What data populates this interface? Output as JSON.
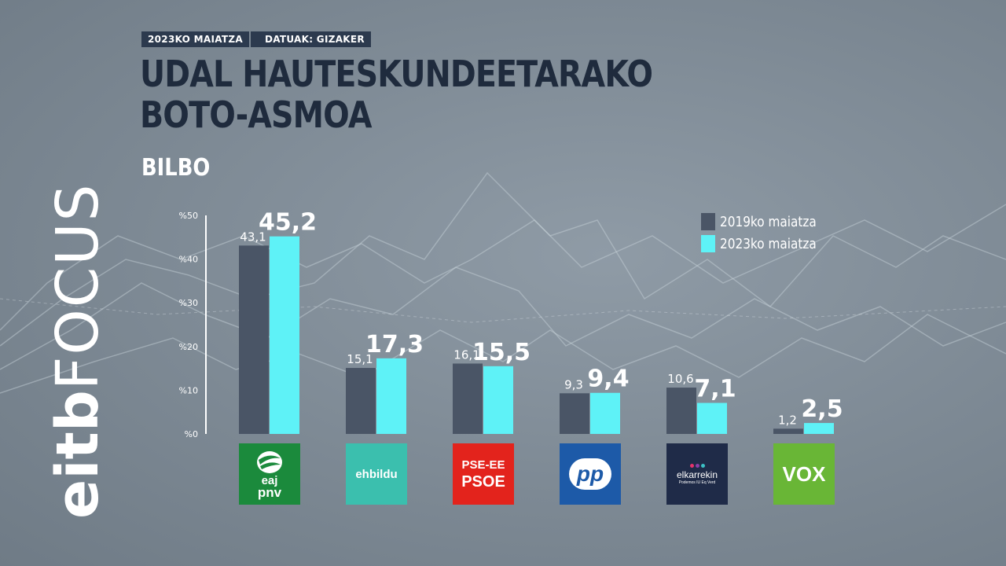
{
  "header": {
    "date_tag": "2023KO MAIATZA",
    "source_tag": "DATUAK: GIZAKER"
  },
  "title_line1": "UDAL HAUTESKUNDEETARAKO",
  "title_line2": "BOTO-ASMOA",
  "subtitle": "BILBO",
  "brand": {
    "part1": "eitb",
    "part2": "FOCUS"
  },
  "colors": {
    "series_2019": "#4a5566",
    "series_2023": "#5ef2f7",
    "text_dark": "#1f2b3d"
  },
  "chart_data": {
    "type": "bar",
    "categories": [
      "EAJ-PNV",
      "EH Bildu",
      "PSE-EE PSOE",
      "PP",
      "Elkarrekin",
      "VOX"
    ],
    "series": [
      {
        "name": "2019ko maiatza",
        "values": [
          43.1,
          15.1,
          16.1,
          9.3,
          10.6,
          1.2
        ]
      },
      {
        "name": "2023ko maiatza",
        "values": [
          45.2,
          17.3,
          15.5,
          9.4,
          7.1,
          2.5
        ]
      }
    ],
    "value_labels_2019": [
      "43,1",
      "15,1",
      "16,1",
      "9,3",
      "10,6",
      "1,2"
    ],
    "value_labels_2023": [
      "45,2",
      "17,3",
      "15,5",
      "9,4",
      "7,1",
      "2,5"
    ],
    "yticks": [
      0,
      10,
      20,
      30,
      40,
      50
    ],
    "ytick_labels": [
      "%0",
      "%10",
      "%20",
      "%30",
      "%40",
      "%50"
    ],
    "ylim": [
      0,
      50
    ],
    "legend_position": "top-right",
    "grid": false
  },
  "logos": [
    {
      "name": "pnv",
      "line1": "eaj",
      "line2": "pnv",
      "color": "#1b8a3c"
    },
    {
      "name": "ehbildu",
      "line1": "ehbildu",
      "line2": "",
      "color": "#3bbfae"
    },
    {
      "name": "psoe",
      "line1": "PSE-EE",
      "line2": "PSOE",
      "color": "#e3231c"
    },
    {
      "name": "pp",
      "line1": "pp",
      "line2": "",
      "color": "#1d5aa8"
    },
    {
      "name": "elkarrekin",
      "line1": "elkarrekin",
      "line2": "Podemos IU Eq Verd",
      "color": "#1f2b48"
    },
    {
      "name": "vox",
      "line1": "VOX",
      "line2": "",
      "color": "#69b636"
    }
  ]
}
